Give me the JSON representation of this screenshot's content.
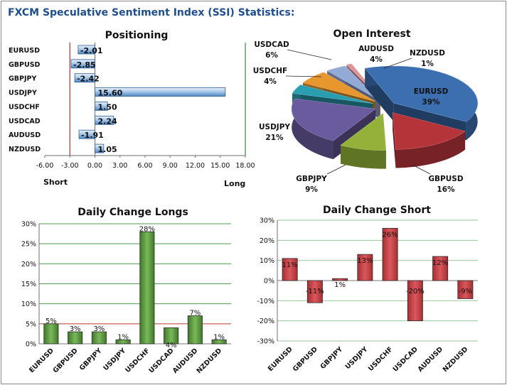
{
  "page": {
    "title": "FXCM Speculative Sentiment Index (SSI) Statistics:"
  },
  "chart_data": [
    {
      "id": "positioning",
      "type": "bar",
      "orientation": "horizontal",
      "title": "Positioning",
      "categories": [
        "EURUSD",
        "GBPUSD",
        "GBPJPY",
        "USDJPY",
        "USDCHF",
        "USDCAD",
        "AUDUSD",
        "NZDUSD"
      ],
      "values": [
        -2.01,
        -2.85,
        -2.42,
        15.6,
        1.5,
        2.24,
        -1.91,
        1.05
      ],
      "value_labels": [
        "-2.01",
        "-2.85",
        "-2.42",
        "15.60",
        "1.50",
        "2.24",
        "-1.91",
        "1.05"
      ],
      "xlim": [
        -6,
        18
      ],
      "xticks": [
        "-6.00",
        "-3.00",
        "0.00",
        "3.00",
        "6.00",
        "9.00",
        "12.00",
        "15.00",
        "18.00"
      ],
      "annotations": {
        "left": "Short",
        "right": "Long"
      },
      "reference_lines": [
        {
          "x": -3,
          "color": "#b03030"
        },
        {
          "x": 18,
          "color": "#2e8b3e"
        }
      ],
      "bar_color": "#7aa8d6"
    },
    {
      "id": "open-interest",
      "type": "pie",
      "title": "Open Interest",
      "slices": [
        {
          "label": "EURUSD",
          "value": 39,
          "text": "39%",
          "color": "#3b6fb0"
        },
        {
          "label": "GBPUSD",
          "value": 16,
          "text": "16%",
          "color": "#b5343a"
        },
        {
          "label": "GBPJPY",
          "value": 9,
          "text": "9%",
          "color": "#94b23a"
        },
        {
          "label": "USDJPY",
          "value": 21,
          "text": "21%",
          "color": "#6a5a9e"
        },
        {
          "label": "USDCHF",
          "value": 4,
          "text": "4%",
          "color": "#2a9eb0"
        },
        {
          "label": "USDCAD",
          "value": 6,
          "text": "6%",
          "color": "#e8962e"
        },
        {
          "label": "AUDUSD",
          "value": 4,
          "text": "4%",
          "color": "#93a9d6"
        },
        {
          "label": "NZDUSD",
          "value": 1,
          "text": "1%",
          "color": "#d9959a"
        }
      ]
    },
    {
      "id": "daily-change-longs",
      "type": "bar",
      "title": "Daily Change Longs",
      "categories": [
        "EURUSD",
        "GBPUSD",
        "GBPJPY",
        "USDJPY",
        "USDCHF",
        "USDCAD",
        "AUDUSD",
        "NZDUSD"
      ],
      "values": [
        5,
        3,
        3,
        1,
        28,
        4,
        7,
        1
      ],
      "value_labels": [
        "5%",
        "3%",
        "3%",
        "1%",
        "28%",
        "4%",
        "7%",
        "1%"
      ],
      "ylim": [
        0,
        30
      ],
      "yticks": [
        "0%",
        "5%",
        "10%",
        "15%",
        "20%",
        "25%",
        "30%"
      ],
      "bar_color": "#4e8a2e"
    },
    {
      "id": "daily-change-short",
      "type": "bar",
      "title": "Daily Change Short",
      "categories": [
        "EURUSD",
        "GBPUSD",
        "GBPJPY",
        "USDJPY",
        "USDCHF",
        "USDCAD",
        "AUDUSD",
        "NZDUSD"
      ],
      "values": [
        11,
        -11,
        1,
        13,
        26,
        -20,
        12,
        -9
      ],
      "value_labels": [
        "11%",
        "-11%",
        "1%",
        "13%",
        "26%",
        "-20%",
        "12%",
        "-9%"
      ],
      "ylim": [
        -30,
        30
      ],
      "yticks": [
        "-30%",
        "-20%",
        "-10%",
        "0%",
        "10%",
        "20%",
        "30%"
      ],
      "bar_color": "#c0383c"
    }
  ]
}
